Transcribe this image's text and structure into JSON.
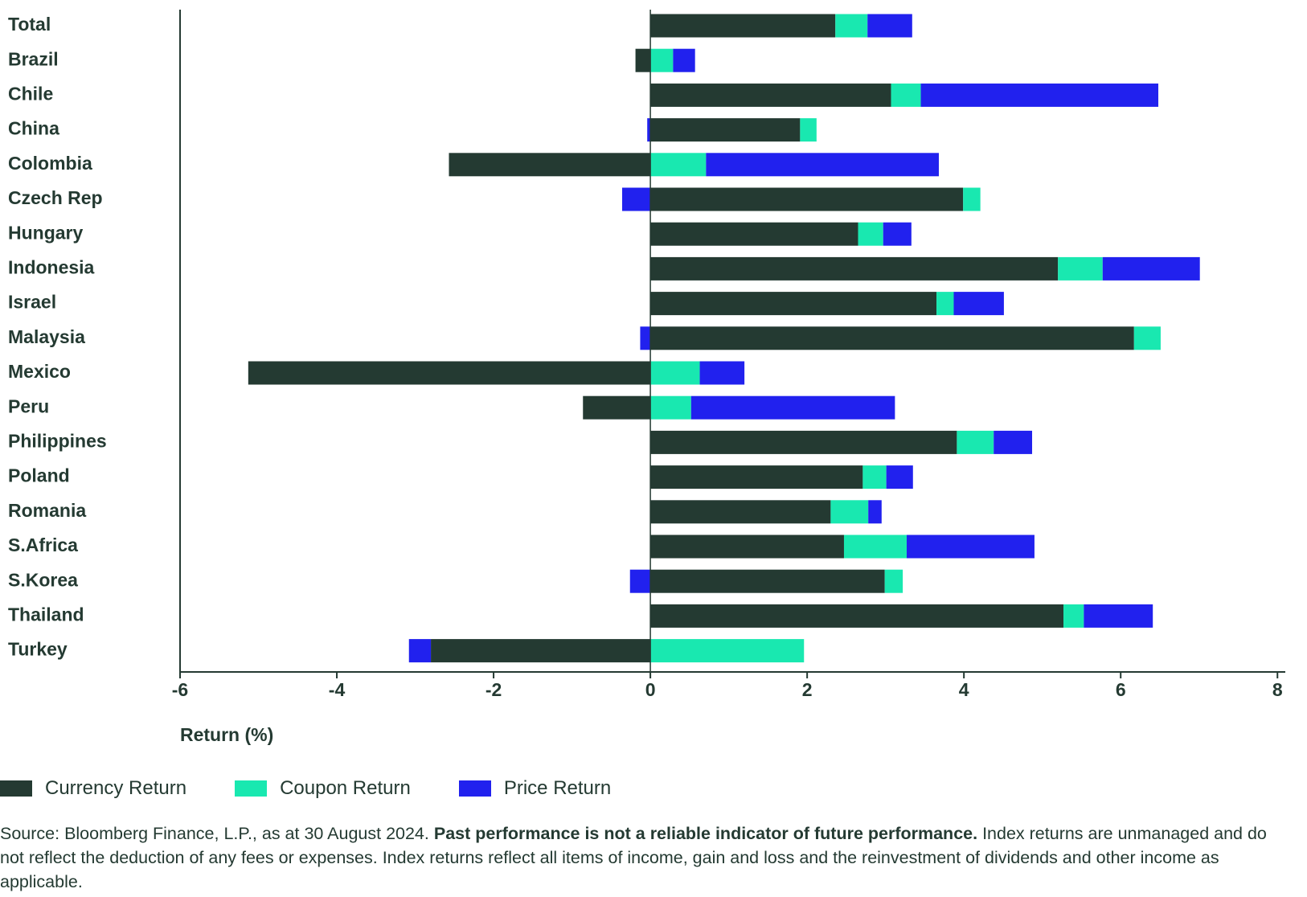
{
  "chart_data": {
    "type": "stacked_bar_horizontal",
    "categories": [
      "Total",
      "Brazil",
      "Chile",
      "China",
      "Colombia",
      "Czech Rep",
      "Hungary",
      "Indonesia",
      "Israel",
      "Malaysia",
      "Mexico",
      "Peru",
      "Philippines",
      "Poland",
      "Romania",
      "S.Africa",
      "S.Korea",
      "Thailand",
      "Turkey"
    ],
    "series": [
      {
        "name": "Currency Return",
        "color": "#243a32",
        "values": [
          2.36,
          -0.19,
          3.07,
          1.91,
          -2.57,
          3.99,
          2.65,
          5.2,
          3.65,
          6.17,
          -5.13,
          -0.86,
          3.91,
          2.71,
          2.3,
          2.47,
          2.99,
          5.27,
          -2.8
        ]
      },
      {
        "name": "Coupon Return",
        "color": "#19e8b0",
        "values": [
          0.41,
          0.29,
          0.38,
          0.21,
          0.71,
          0.22,
          0.32,
          0.57,
          0.22,
          0.34,
          0.63,
          0.52,
          0.47,
          0.3,
          0.48,
          0.8,
          0.23,
          0.26,
          1.96
        ]
      },
      {
        "name": "Price Return",
        "color": "#2121ee",
        "values": [
          0.57,
          0.28,
          3.03,
          -0.04,
          2.97,
          -0.36,
          0.36,
          1.24,
          0.64,
          -0.13,
          0.57,
          2.6,
          0.49,
          0.34,
          0.17,
          1.63,
          -0.26,
          0.88,
          -0.28
        ]
      }
    ],
    "xlabel": "Return (%)",
    "xlim": [
      -6,
      8.1
    ],
    "xticks": [
      -6,
      -4,
      -2,
      0,
      2,
      4,
      6,
      8
    ],
    "source": "Source: Bloomberg Finance, L.P., as at 30 August 2024.",
    "disclaimer": "Past performance is not a reliable indicator of future performance.",
    "note": "Index returns are unmanaged and do not reflect the deduction of any fees or expenses. Index returns reflect all items of income, gain and loss and the reinvestment of dividends and other income as applicable."
  }
}
